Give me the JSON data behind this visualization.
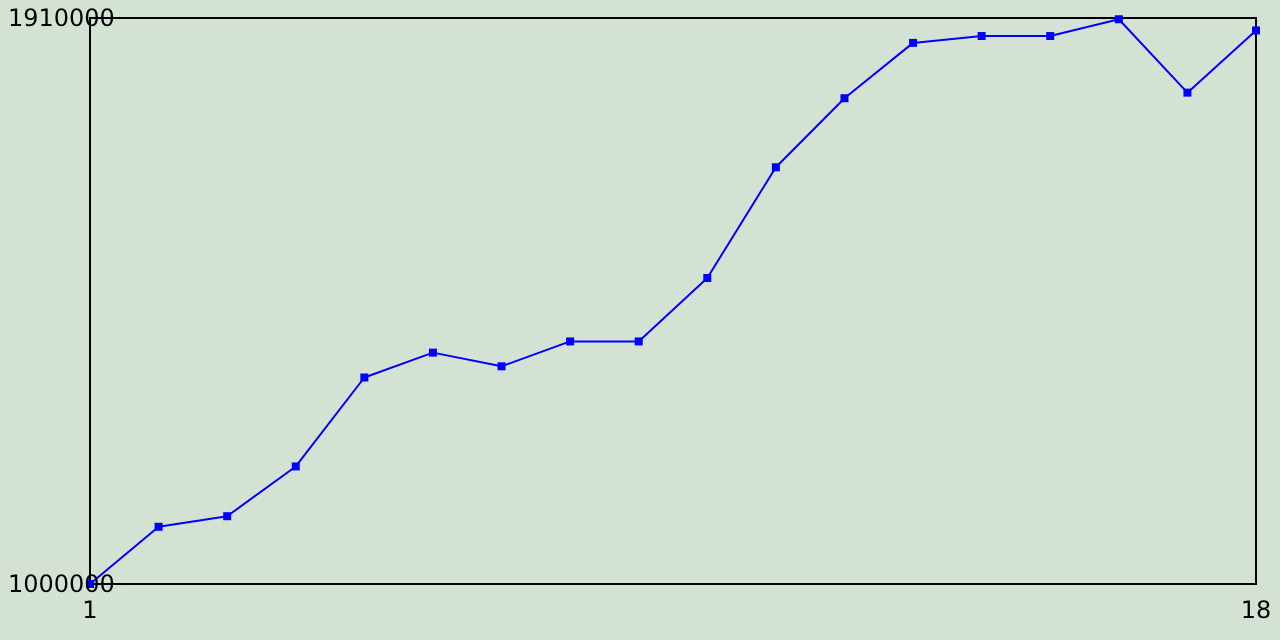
{
  "chart_data": {
    "type": "line",
    "x": [
      1,
      2,
      3,
      4,
      5,
      6,
      7,
      8,
      9,
      10,
      11,
      12,
      13,
      14,
      15,
      16,
      17,
      18
    ],
    "series": [
      {
        "color": "#0000ff",
        "values": [
          1000000,
          1092000,
          1109000,
          1189000,
          1332000,
          1372000,
          1350000,
          1390000,
          1390000,
          1492000,
          1670000,
          1781000,
          1870000,
          1881000,
          1881000,
          1908000,
          1790000,
          1890000
        ]
      }
    ],
    "xlim": [
      1,
      18
    ],
    "xticks": [
      1,
      18
    ],
    "ylim": [
      1000000,
      1910000
    ],
    "yticks": [
      1000000,
      1910000
    ],
    "marker": "square",
    "line_style": "solid"
  }
}
